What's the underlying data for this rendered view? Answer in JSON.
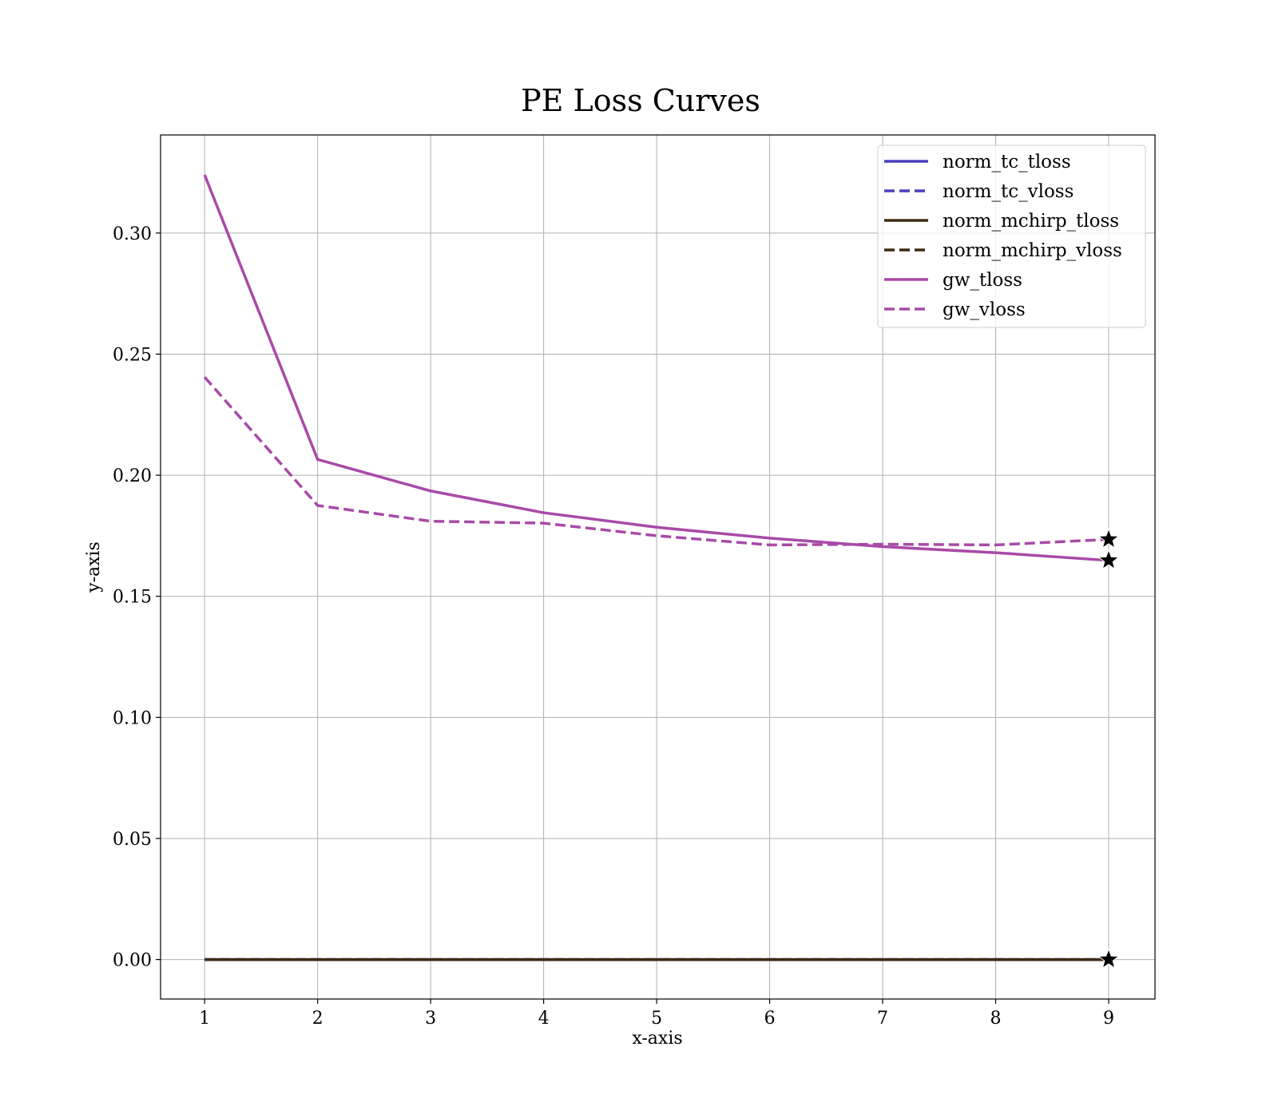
{
  "chart_data": {
    "type": "line",
    "title": "PE Loss Curves",
    "xlabel": "x-axis",
    "ylabel": "y-axis",
    "xlim": [
      0.61,
      9.41
    ],
    "ylim": [
      -0.0163,
      0.3405
    ],
    "x_ticks": [
      1,
      2,
      3,
      4,
      5,
      6,
      7,
      8,
      9
    ],
    "y_ticks": [
      0.0,
      0.05,
      0.1,
      0.15,
      0.2,
      0.25,
      0.3
    ],
    "y_tick_labels": [
      "0.00",
      "0.05",
      "0.10",
      "0.15",
      "0.20",
      "0.25",
      "0.30"
    ],
    "grid": true,
    "legend_position": "top-right",
    "x": [
      1,
      2,
      3,
      4,
      5,
      6,
      7,
      8,
      9
    ],
    "series": [
      {
        "name": "norm_tc_tloss",
        "color": "#4b3fbf",
        "dash": "solid",
        "values": [
          0.0,
          0.0,
          0.0,
          0.0,
          0.0,
          0.0,
          0.0,
          0.0,
          0.0
        ]
      },
      {
        "name": "norm_tc_vloss",
        "color": "#4b3fbf",
        "dash": "dashed",
        "values": [
          0.0,
          0.0,
          0.0,
          0.0,
          0.0,
          0.0,
          0.0,
          0.0,
          0.0
        ]
      },
      {
        "name": "norm_mchirp_tloss",
        "color": "#3f2b14",
        "dash": "solid",
        "values": [
          0.0,
          0.0,
          0.0,
          0.0,
          0.0,
          0.0,
          0.0,
          0.0,
          0.0
        ]
      },
      {
        "name": "norm_mchirp_vloss",
        "color": "#3f2b14",
        "dash": "dashed",
        "values": [
          0.0,
          0.0,
          0.0,
          0.0,
          0.0,
          0.0,
          0.0,
          0.0,
          0.0
        ]
      },
      {
        "name": "gw_tloss",
        "color": "#a84aa8",
        "dash": "solid",
        "values": [
          0.324,
          0.2065,
          0.1935,
          0.1845,
          0.1785,
          0.174,
          0.1705,
          0.168,
          0.1648
        ]
      },
      {
        "name": "gw_vloss",
        "color": "#a84aa8",
        "dash": "dashed",
        "values": [
          0.2405,
          0.1875,
          0.181,
          0.1802,
          0.175,
          0.1712,
          0.1715,
          0.1712,
          0.1735
        ]
      }
    ],
    "markers": [
      {
        "marker": "star",
        "color": "#000000",
        "x": 9,
        "y": 0.1735
      },
      {
        "marker": "star",
        "color": "#000000",
        "x": 9,
        "y": 0.1648
      },
      {
        "marker": "star",
        "color": "#000000",
        "x": 9,
        "y": 0.0
      }
    ]
  }
}
